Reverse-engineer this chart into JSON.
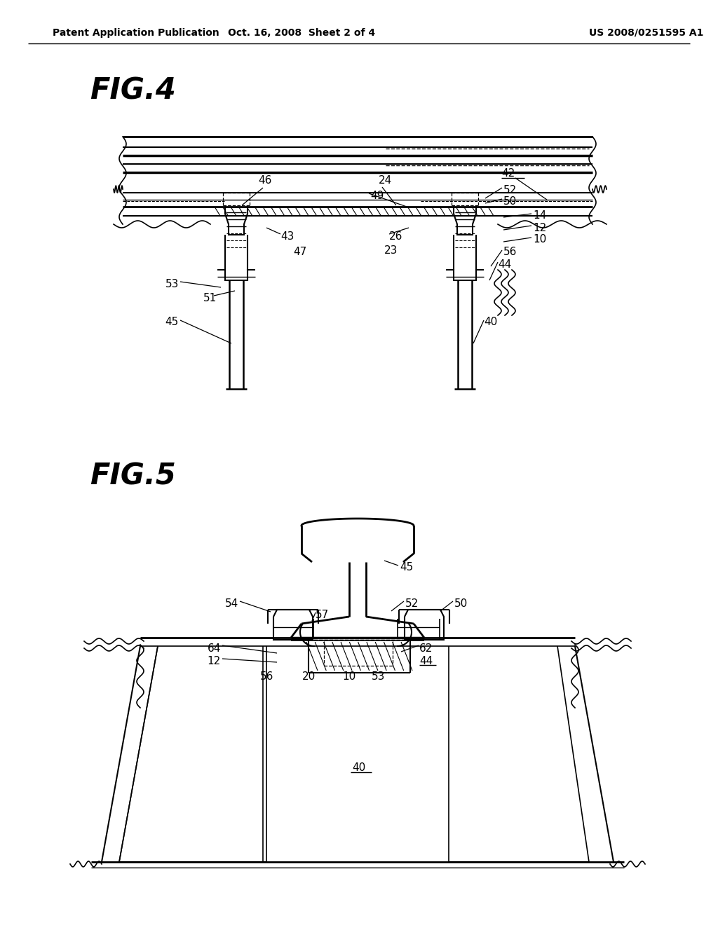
{
  "bg_color": "#ffffff",
  "header_text": "Patent Application Publication",
  "header_date": "Oct. 16, 2008  Sheet 2 of 4",
  "header_patent": "US 2008/0251595 A1",
  "fig4_label": "FIG.4",
  "fig5_label": "FIG.5",
  "line_color": "#000000",
  "text_color": "#000000"
}
